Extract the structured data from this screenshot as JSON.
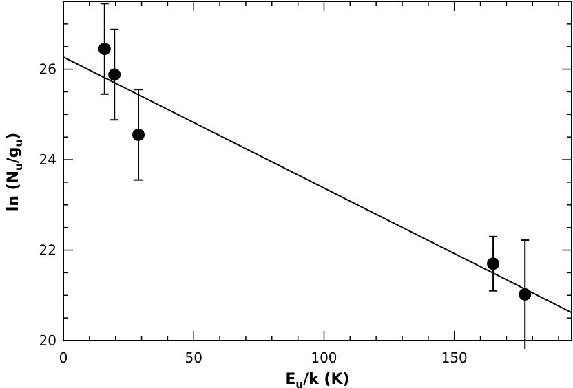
{
  "chart_data": {
    "type": "scatter",
    "title": "",
    "xlabel": {
      "main": "E",
      "sub": "u",
      "rest": "/k (K)"
    },
    "ylabel": {
      "prefix": "ln (N",
      "sub1": "u",
      "mid": "/g",
      "sub2": "u",
      "suffix": ")"
    },
    "xlim": [
      0,
      195
    ],
    "ylim": [
      20,
      27.5
    ],
    "xticks_major": [
      0,
      50,
      100,
      150
    ],
    "xtick_labels": [
      "0",
      "50",
      "100",
      "150"
    ],
    "xticks_minor_step": 10,
    "yticks_major": [
      20,
      22,
      24,
      26
    ],
    "ytick_labels": [
      "20",
      "22",
      "24",
      "26"
    ],
    "yticks_minor_step": 0.5,
    "grid": false,
    "series": [
      {
        "points": [
          {
            "x": 15.8,
            "y": 26.45,
            "err_low": 1.0,
            "err_high": 1.0
          },
          {
            "x": 19.6,
            "y": 25.88,
            "err_low": 1.0,
            "err_high": 1.0
          },
          {
            "x": 28.8,
            "y": 24.55,
            "err_low": 1.0,
            "err_high": 1.0
          },
          {
            "x": 164.9,
            "y": 21.7,
            "err_low": 0.6,
            "err_high": 0.6
          },
          {
            "x": 177.1,
            "y": 21.02,
            "err_low": 1.2,
            "err_high": 1.2
          }
        ]
      }
    ],
    "fit_line": {
      "x": [
        0,
        195
      ],
      "y": [
        26.27,
        20.62
      ]
    }
  }
}
